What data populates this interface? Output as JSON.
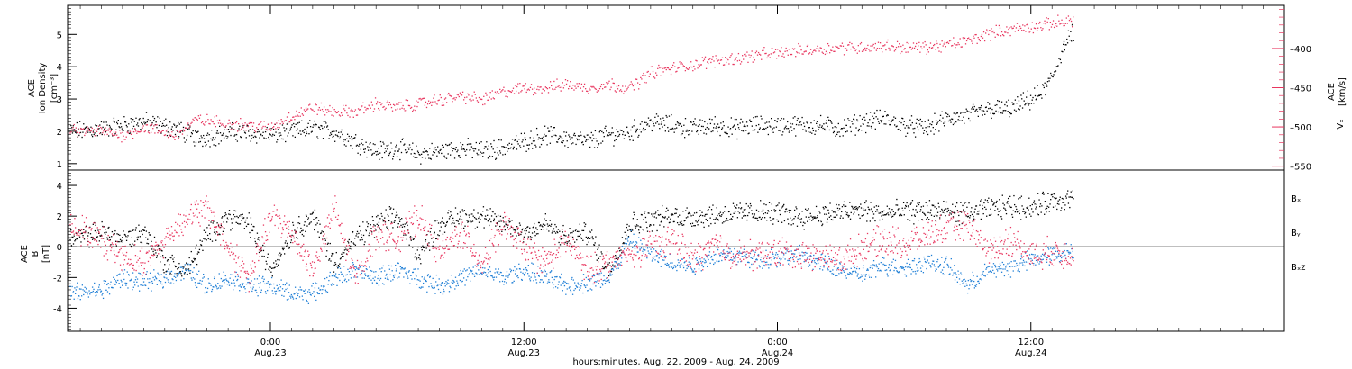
{
  "colors": {
    "black": "#000000",
    "pink": "#e8365f",
    "blue": "#1f7fd6"
  },
  "xaxis": {
    "label": "hours:minutes, Aug. 22, 2009 - Aug. 24, 2009",
    "ticks": [
      {
        "hour": 24,
        "time": "0:00",
        "date": "Aug.23"
      },
      {
        "hour": 36,
        "time": "12:00",
        "date": "Aug.23"
      },
      {
        "hour": 48,
        "time": "0:00",
        "date": "Aug.24"
      },
      {
        "hour": 60,
        "time": "12:00",
        "date": "Aug.24"
      }
    ]
  },
  "panel1": {
    "left_label": [
      "ACE",
      "Ion Density",
      "[cm⁻³]"
    ],
    "right_label": [
      "Vₓ",
      "ACE",
      "[km/s]"
    ],
    "left_ticks": [
      1,
      2,
      3,
      4,
      5
    ],
    "right_ticks": [
      -550,
      -500,
      -450,
      -400
    ],
    "right_tick_labels": [
      "–550",
      "–500",
      "–450",
      "–400"
    ]
  },
  "panel2": {
    "left_label": [
      "ACE",
      "B",
      "[nT]"
    ],
    "left_ticks": [
      -4,
      -2,
      0,
      2,
      4
    ],
    "legend": [
      "Bₓ",
      "Bᵧ",
      "Bₓz"
    ]
  },
  "chart_data": [
    {
      "type": "scatter",
      "xlim": [
        14.4,
        72
      ],
      "ylim": [
        0.8,
        5.9
      ],
      "y2lim": [
        -555,
        -345
      ],
      "series": [
        {
          "name": "ACE Ion Density",
          "color": "#000000",
          "axis": "left",
          "x": [
            14.5,
            16,
            18,
            19.5,
            20.5,
            21.5,
            22.5,
            24,
            25,
            26,
            27,
            28,
            29,
            30,
            31,
            32,
            33,
            34,
            35,
            36,
            37,
            38,
            39,
            40,
            41,
            42,
            43,
            44,
            45,
            46,
            47,
            48,
            49,
            50,
            51,
            52,
            53,
            54,
            55,
            56,
            57,
            58,
            59,
            60,
            60.5,
            61,
            61.5,
            62
          ],
          "y": [
            2.0,
            2.1,
            2.3,
            2.1,
            1.8,
            1.9,
            2.0,
            1.9,
            2.0,
            2.1,
            2.0,
            1.7,
            1.4,
            1.5,
            1.3,
            1.4,
            1.5,
            1.4,
            1.5,
            1.7,
            1.9,
            1.8,
            1.7,
            1.9,
            2.0,
            2.3,
            2.2,
            2.1,
            2.2,
            2.1,
            2.2,
            2.2,
            2.2,
            2.2,
            2.1,
            2.3,
            2.4,
            2.2,
            2.1,
            2.4,
            2.5,
            2.7,
            2.7,
            3.0,
            3.2,
            3.7,
            4.6,
            5.1
          ]
        },
        {
          "name": "ACE Vx",
          "color": "#e8365f",
          "axis": "right",
          "x": [
            14.5,
            16,
            17,
            18,
            19.5,
            20.5,
            22,
            24,
            25,
            26,
            27,
            28,
            29,
            30,
            31,
            32,
            33,
            34,
            35,
            36,
            37,
            38,
            39,
            40,
            41,
            42,
            43,
            44,
            45,
            46,
            47,
            48,
            49,
            50,
            51,
            52,
            53,
            54,
            55,
            56,
            57,
            58,
            59,
            60,
            60.5,
            61,
            61.5,
            62
          ],
          "y": [
            -505,
            -505,
            -510,
            -500,
            -510,
            -490,
            -495,
            -500,
            -485,
            -475,
            -480,
            -480,
            -470,
            -475,
            -470,
            -465,
            -460,
            -465,
            -455,
            -450,
            -450,
            -445,
            -450,
            -445,
            -450,
            -430,
            -425,
            -420,
            -415,
            -412,
            -408,
            -405,
            -402,
            -400,
            -398,
            -398,
            -396,
            -398,
            -398,
            -395,
            -390,
            -380,
            -375,
            -372,
            -370,
            -367,
            -365,
            -362
          ]
        }
      ]
    },
    {
      "type": "scatter",
      "xlim": [
        14.4,
        72
      ],
      "ylim": [
        -5.5,
        5.0
      ],
      "series": [
        {
          "name": "Bx",
          "color": "#000000",
          "x": [
            14.5,
            16,
            17,
            18,
            19,
            20,
            21,
            22,
            23,
            24,
            25,
            26,
            27,
            28,
            29,
            30,
            31,
            32,
            33,
            34,
            35,
            36,
            37,
            38,
            39,
            40,
            41,
            42,
            43,
            44,
            45,
            46,
            47,
            48,
            49,
            50,
            51,
            52,
            53,
            54,
            55,
            56,
            57,
            58,
            59,
            60,
            61,
            62
          ],
          "y": [
            0.5,
            1.0,
            0.5,
            1.0,
            -1.0,
            -1.5,
            0.8,
            2.0,
            1.5,
            -1.5,
            1.0,
            2.0,
            -1.0,
            0.5,
            1.5,
            2.0,
            -0.5,
            1.5,
            2.0,
            2.0,
            1.5,
            1.0,
            1.5,
            0.5,
            1.0,
            -1.5,
            1.5,
            1.8,
            2.0,
            2.0,
            2.1,
            2.2,
            2.3,
            2.2,
            2.0,
            2.1,
            2.3,
            2.4,
            2.2,
            2.3,
            2.4,
            2.3,
            2.2,
            2.5,
            2.7,
            2.6,
            3.0,
            3.2
          ]
        },
        {
          "name": "By",
          "color": "#1f7fd6",
          "x": [
            14.5,
            16,
            17,
            18,
            19,
            20,
            21,
            22,
            23,
            24,
            25,
            26,
            27,
            28,
            29,
            30,
            31,
            32,
            33,
            34,
            35,
            36,
            37,
            38,
            39,
            40,
            41,
            42,
            43,
            44,
            45,
            46,
            47,
            48,
            49,
            50,
            51,
            52,
            53,
            54,
            55,
            56,
            57,
            58,
            59,
            60,
            61,
            62
          ],
          "y": [
            -3.0,
            -2.8,
            -2.0,
            -2.3,
            -2.0,
            -1.5,
            -2.5,
            -2.0,
            -2.5,
            -2.5,
            -3.0,
            -3.0,
            -2.0,
            -1.5,
            -2.0,
            -1.5,
            -2.0,
            -2.5,
            -2.0,
            -1.5,
            -2.0,
            -1.5,
            -2.0,
            -2.5,
            -2.3,
            -2.0,
            0.5,
            -0.5,
            -1.0,
            -1.2,
            -0.5,
            -0.5,
            -0.8,
            -0.6,
            -0.5,
            -1.0,
            -1.5,
            -1.8,
            -1.2,
            -1.3,
            -1.0,
            -1.2,
            -2.5,
            -1.5,
            -1.3,
            -0.8,
            -0.5,
            -0.2
          ]
        },
        {
          "name": "Bz",
          "color": "#e8365f",
          "x": [
            14.5,
            16,
            17,
            18,
            19,
            20,
            21,
            22,
            23,
            24,
            25,
            26,
            27,
            28,
            29,
            30,
            31,
            32,
            33,
            34,
            35,
            36,
            37,
            38,
            39,
            40,
            41,
            42,
            43,
            44,
            45,
            46,
            47,
            48,
            49,
            50,
            51,
            52,
            53,
            54,
            55,
            56,
            57,
            58,
            59,
            60,
            61,
            62
          ],
          "y": [
            1.5,
            0.5,
            -0.5,
            -1.0,
            0.5,
            2.0,
            2.5,
            0.0,
            -2.0,
            2.0,
            1.0,
            -1.5,
            2.5,
            -2.0,
            1.0,
            0.5,
            2.0,
            -0.5,
            1.0,
            -1.0,
            1.5,
            0.0,
            -1.0,
            0.5,
            -1.5,
            -1.0,
            -0.5,
            0.0,
            0.5,
            -0.8,
            0.2,
            -0.5,
            -0.5,
            -0.3,
            -0.5,
            -0.6,
            -0.8,
            0.0,
            0.5,
            0.2,
            0.8,
            1.2,
            1.5,
            -0.3,
            0.5,
            -0.5,
            -0.3,
            -0.5
          ]
        }
      ]
    }
  ]
}
